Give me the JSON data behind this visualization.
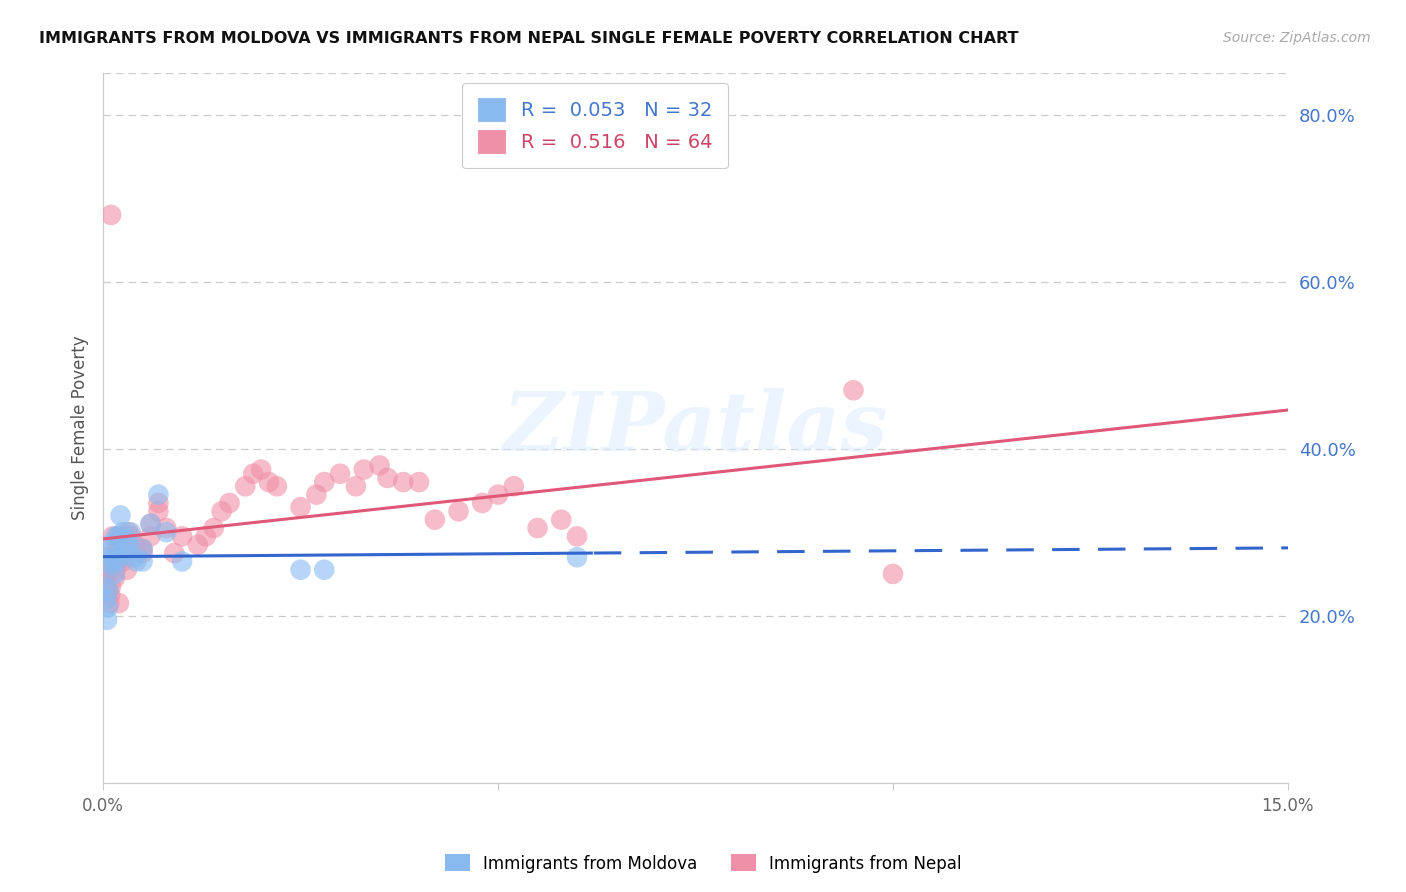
{
  "title": "IMMIGRANTS FROM MOLDOVA VS IMMIGRANTS FROM NEPAL SINGLE FEMALE POVERTY CORRELATION CHART",
  "source": "Source: ZipAtlas.com",
  "ylabel": "Single Female Poverty",
  "xlim": [
    0.0,
    0.15
  ],
  "ylim": [
    0.0,
    0.85
  ],
  "xticks": [
    0.0,
    0.05,
    0.1,
    0.15
  ],
  "xtick_labels": [
    "0.0%",
    "",
    "",
    "15.0%"
  ],
  "yticks_right": [
    0.2,
    0.4,
    0.6,
    0.8
  ],
  "ytick_right_labels": [
    "20.0%",
    "40.0%",
    "60.0%",
    "80.0%"
  ],
  "moldova_color": "#88baf0",
  "nepal_color": "#f090a8",
  "moldova_line_color": "#3366cc",
  "nepal_line_color": "#e05878",
  "moldova_R": 0.053,
  "moldova_N": 32,
  "nepal_R": 0.516,
  "nepal_N": 64,
  "watermark_text": "ZIPatlas",
  "moldova_x": [
    0.0002,
    0.0004,
    0.0005,
    0.0006,
    0.0007,
    0.0008,
    0.0009,
    0.001,
    0.0012,
    0.0014,
    0.0015,
    0.0016,
    0.0018,
    0.002,
    0.002,
    0.0022,
    0.0025,
    0.003,
    0.003,
    0.0032,
    0.0035,
    0.004,
    0.0042,
    0.005,
    0.005,
    0.006,
    0.007,
    0.008,
    0.01,
    0.025,
    0.028,
    0.06
  ],
  "moldova_y": [
    0.235,
    0.22,
    0.195,
    0.21,
    0.23,
    0.265,
    0.285,
    0.26,
    0.28,
    0.27,
    0.25,
    0.295,
    0.265,
    0.27,
    0.295,
    0.32,
    0.3,
    0.29,
    0.275,
    0.285,
    0.3,
    0.27,
    0.265,
    0.265,
    0.28,
    0.31,
    0.345,
    0.3,
    0.265,
    0.255,
    0.255,
    0.27
  ],
  "nepal_x": [
    0.0002,
    0.0004,
    0.0005,
    0.0006,
    0.0007,
    0.0008,
    0.0009,
    0.001,
    0.0012,
    0.0014,
    0.0015,
    0.0016,
    0.0018,
    0.002,
    0.002,
    0.0022,
    0.0025,
    0.003,
    0.003,
    0.0032,
    0.0035,
    0.004,
    0.0042,
    0.005,
    0.005,
    0.006,
    0.006,
    0.007,
    0.007,
    0.008,
    0.009,
    0.01,
    0.012,
    0.013,
    0.014,
    0.015,
    0.016,
    0.018,
    0.019,
    0.02,
    0.021,
    0.022,
    0.025,
    0.027,
    0.028,
    0.03,
    0.032,
    0.033,
    0.035,
    0.036,
    0.038,
    0.04,
    0.042,
    0.045,
    0.048,
    0.05,
    0.052,
    0.055,
    0.058,
    0.06,
    0.001,
    0.002,
    0.095,
    0.1
  ],
  "nepal_y": [
    0.24,
    0.26,
    0.23,
    0.27,
    0.255,
    0.215,
    0.225,
    0.235,
    0.295,
    0.265,
    0.245,
    0.255,
    0.28,
    0.27,
    0.295,
    0.27,
    0.265,
    0.285,
    0.255,
    0.3,
    0.295,
    0.285,
    0.275,
    0.275,
    0.28,
    0.295,
    0.31,
    0.325,
    0.335,
    0.305,
    0.275,
    0.295,
    0.285,
    0.295,
    0.305,
    0.325,
    0.335,
    0.355,
    0.37,
    0.375,
    0.36,
    0.355,
    0.33,
    0.345,
    0.36,
    0.37,
    0.355,
    0.375,
    0.38,
    0.365,
    0.36,
    0.36,
    0.315,
    0.325,
    0.335,
    0.345,
    0.355,
    0.305,
    0.315,
    0.295,
    0.68,
    0.215,
    0.47,
    0.25
  ]
}
